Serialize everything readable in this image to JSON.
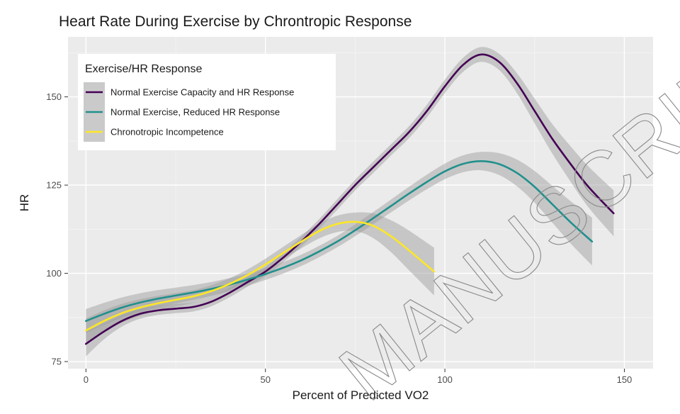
{
  "chart_data": {
    "type": "line",
    "title": "Heart Rate During Exercise by Chrontropic Response",
    "xlabel": "Percent of Predicted VO2",
    "ylabel": "HR",
    "xlim": [
      -5,
      158
    ],
    "ylim": [
      73,
      167
    ],
    "x_ticks": [
      0,
      50,
      100,
      150
    ],
    "y_ticks": [
      75,
      100,
      125,
      150
    ],
    "grid": true,
    "legend": {
      "title": "Exercise/HR Response",
      "position": "top-left"
    },
    "confidence_band": true,
    "series": [
      {
        "name": "Normal Exercise Capacity and HR Response",
        "color": "#440154",
        "x": [
          0,
          5,
          10,
          15,
          20,
          25,
          30,
          35,
          40,
          45,
          50,
          55,
          60,
          65,
          70,
          75,
          80,
          85,
          90,
          95,
          100,
          105,
          110,
          115,
          120,
          125,
          130,
          135,
          140,
          147
        ],
        "y": [
          80,
          83.5,
          86.5,
          88.5,
          89.5,
          90,
          90.5,
          92,
          94.5,
          97.5,
          100.5,
          104.5,
          109,
          114,
          119.5,
          125,
          130,
          135,
          140,
          146,
          153,
          159,
          162,
          160,
          154,
          146,
          138,
          131,
          124.5,
          117
        ],
        "band": [
          3.5,
          2.2,
          1.6,
          1.4,
          1.3,
          1.3,
          1.3,
          1.3,
          1.3,
          1.3,
          1.3,
          1.3,
          1.4,
          1.4,
          1.5,
          1.5,
          1.6,
          1.6,
          1.7,
          1.8,
          1.9,
          2.0,
          2.1,
          2.3,
          2.8,
          3.5,
          4.2,
          5.0,
          5.8,
          6.5
        ]
      },
      {
        "name": "Normal Exercise, Reduced HR Response",
        "color": "#21908C",
        "x": [
          0,
          5,
          10,
          15,
          20,
          25,
          30,
          35,
          40,
          45,
          50,
          55,
          60,
          65,
          70,
          75,
          80,
          85,
          90,
          95,
          100,
          105,
          110,
          115,
          120,
          125,
          130,
          135,
          141
        ],
        "y": [
          86.5,
          88.5,
          90.3,
          91.7,
          92.8,
          93.7,
          94.6,
          95.6,
          96.8,
          98.2,
          99.8,
          101.6,
          103.7,
          106.2,
          109,
          112.2,
          115.6,
          119.1,
          122.6,
          125.9,
          128.9,
          131,
          131.8,
          131,
          128.5,
          124.5,
          119.5,
          114.5,
          109
        ]
      },
      {
        "name": "Chronotropic Incompetence",
        "color": "#FDE725",
        "x": [
          0,
          5,
          10,
          15,
          20,
          25,
          30,
          35,
          40,
          45,
          50,
          55,
          60,
          65,
          70,
          75,
          80,
          85,
          90,
          97
        ],
        "y": [
          83.8,
          86.5,
          88.7,
          90.3,
          91.5,
          92.5,
          93.5,
          95,
          97,
          99.5,
          102.5,
          105.8,
          109,
          112,
          114,
          114.6,
          113.5,
          110.5,
          106.5,
          100.5
        ]
      }
    ]
  },
  "watermark": {
    "text": "MANUSCRIPT",
    "color": "#8a8a8a"
  }
}
